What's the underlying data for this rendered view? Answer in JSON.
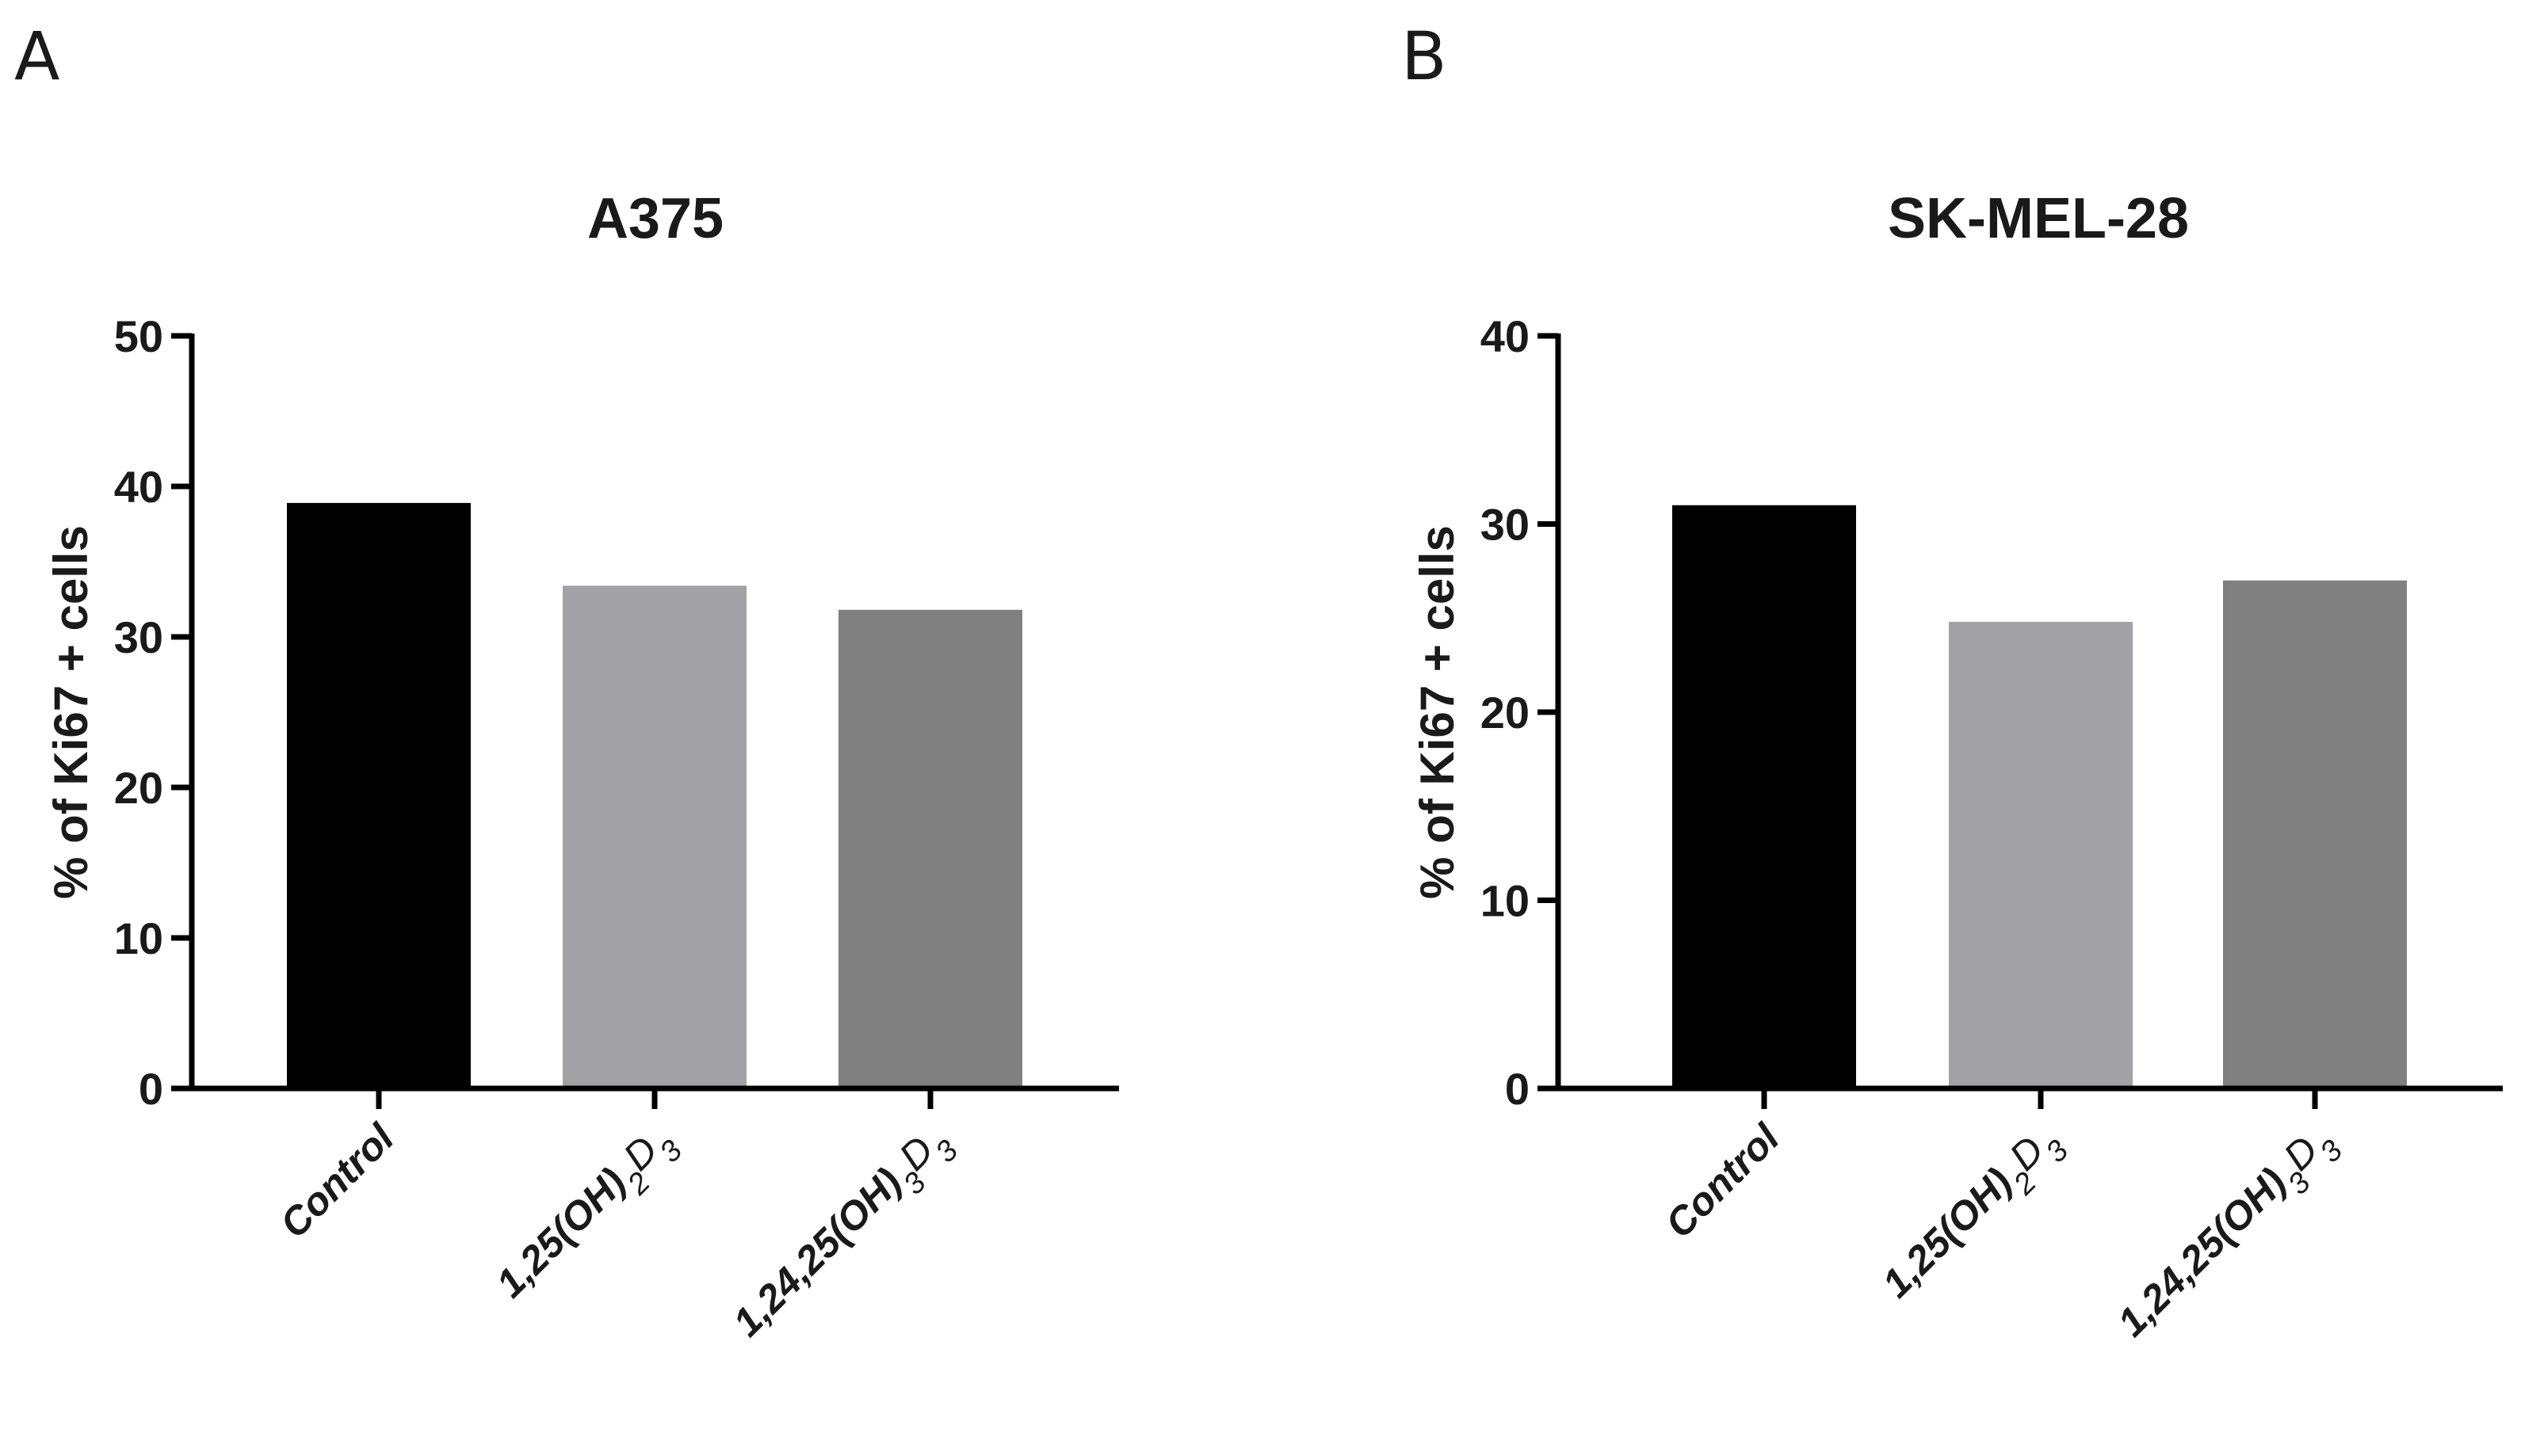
{
  "panels": {
    "a": {
      "letter": "A"
    },
    "b": {
      "letter": "B"
    }
  },
  "chart_data": [
    {
      "type": "bar",
      "title": "A375",
      "xlabel": "",
      "ylabel": "% of Ki67 + cells",
      "ylim": [
        0,
        50
      ],
      "yticks": [
        0,
        10,
        20,
        30,
        40,
        50
      ],
      "categories": [
        {
          "base": "Control",
          "parts": []
        },
        {
          "base": "1,25(OH)",
          "parts": [
            {
              "t": "2",
              "sub": true
            },
            {
              "t": "D",
              "sub": false
            },
            {
              "t": "3",
              "sub": true
            }
          ]
        },
        {
          "base": "1,24,25(OH)",
          "parts": [
            {
              "t": "3",
              "sub": true
            },
            {
              "t": "D",
              "sub": false
            },
            {
              "t": "3",
              "sub": true
            }
          ]
        }
      ],
      "values": [
        38.9,
        33.4,
        31.8
      ],
      "colors": [
        "#000000",
        "#a2a2a6",
        "#808080"
      ]
    },
    {
      "type": "bar",
      "title": "SK-MEL-28",
      "xlabel": "",
      "ylabel": "% of Ki67 + cells",
      "ylim": [
        0,
        40
      ],
      "yticks": [
        0,
        10,
        20,
        30,
        40
      ],
      "categories": [
        {
          "base": "Control",
          "parts": []
        },
        {
          "base": "1,25(OH)",
          "parts": [
            {
              "t": "2",
              "sub": true
            },
            {
              "t": "D",
              "sub": false
            },
            {
              "t": "3",
              "sub": true
            }
          ]
        },
        {
          "base": "1,24,25(OH)",
          "parts": [
            {
              "t": "3",
              "sub": true
            },
            {
              "t": "D",
              "sub": false
            },
            {
              "t": "3",
              "sub": true
            }
          ]
        }
      ],
      "values": [
        31.0,
        24.8,
        27.0
      ],
      "colors": [
        "#000000",
        "#a2a2a6",
        "#808080"
      ]
    }
  ]
}
